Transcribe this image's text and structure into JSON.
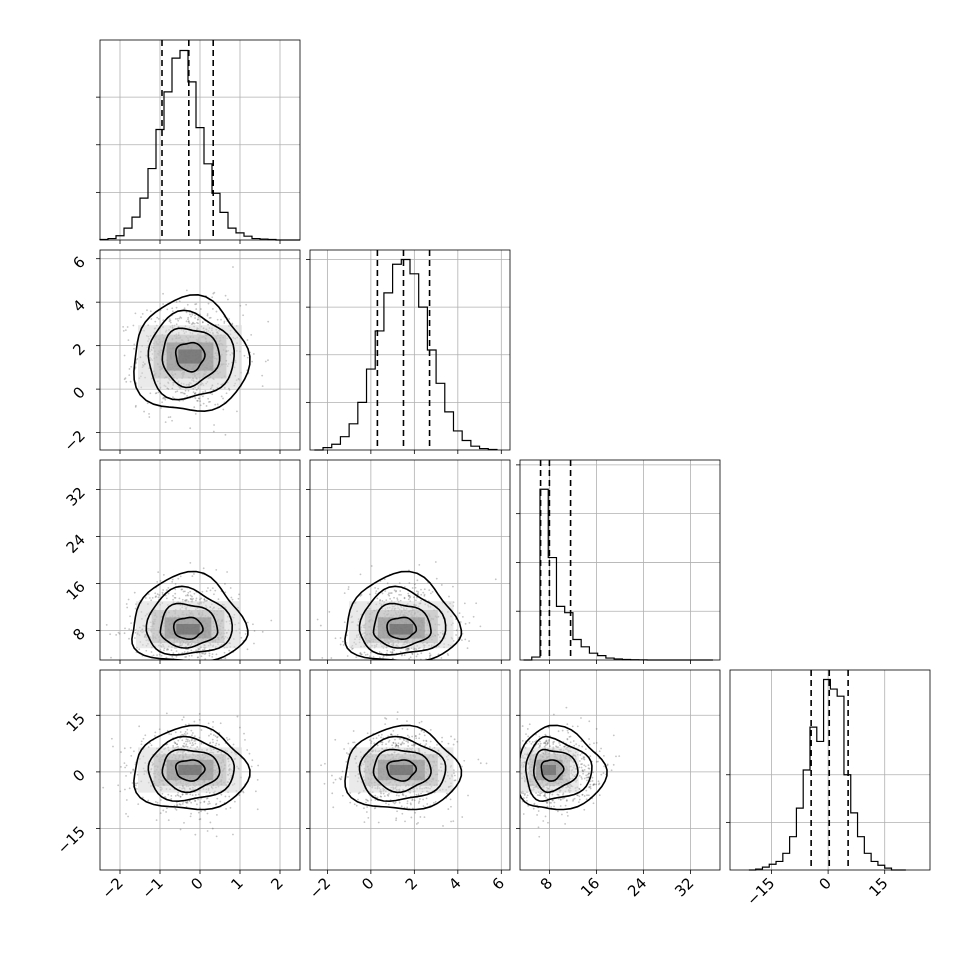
{
  "figure": {
    "type": "corner-plot",
    "n_parameters": 4
  },
  "chart_data": {
    "type": "corner",
    "title": "",
    "parameters": [
      {
        "index": 0,
        "label": "",
        "range": [
          -2.5,
          2.5
        ],
        "ticks": [
          -2,
          -1,
          0,
          1,
          2
        ],
        "tick_labels": [
          "−2",
          "−1",
          "0",
          "1",
          "2"
        ],
        "quantiles": [
          -0.95,
          -0.28,
          0.33
        ],
        "median": -0.28,
        "histogram": {
          "bin_edges": [
            -2.5,
            -2.3,
            -2.1,
            -1.9,
            -1.7,
            -1.5,
            -1.3,
            -1.1,
            -0.9,
            -0.7,
            -0.5,
            -0.3,
            -0.1,
            0.1,
            0.3,
            0.5,
            0.7,
            0.9,
            1.1,
            1.3,
            1.5,
            1.7,
            1.9,
            2.1,
            2.3,
            2.5
          ],
          "counts": [
            1,
            3,
            9,
            25,
            48,
            88,
            150,
            232,
            311,
            382,
            398,
            332,
            236,
            160,
            98,
            58,
            25,
            15,
            8,
            3,
            2,
            1,
            0,
            0,
            0
          ],
          "ylim": [
            0,
            420
          ],
          "yticks": [
            100,
            200,
            300
          ]
        }
      },
      {
        "index": 1,
        "label": "",
        "range": [
          -2.8,
          6.4
        ],
        "ticks": [
          -2,
          0,
          2,
          4,
          6
        ],
        "tick_labels": [
          "−2",
          "0",
          "2",
          "4",
          "6"
        ],
        "quantiles": [
          0.3,
          1.5,
          2.7
        ],
        "median": 1.5,
        "histogram": {
          "bin_edges": [
            -2.6,
            -2.2,
            -1.8,
            -1.4,
            -1.0,
            -0.6,
            -0.2,
            0.2,
            0.6,
            1.0,
            1.4,
            1.8,
            2.2,
            2.6,
            3.0,
            3.4,
            3.8,
            4.2,
            4.6,
            5.0,
            5.4,
            5.8
          ],
          "counts": [
            0,
            5,
            12,
            28,
            55,
            100,
            170,
            250,
            330,
            390,
            400,
            370,
            300,
            210,
            140,
            80,
            40,
            20,
            8,
            3,
            1
          ],
          "ylim": [
            0,
            420
          ],
          "yticks": [
            100,
            200,
            300,
            400
          ]
        }
      },
      {
        "index": 2,
        "label": "",
        "range": [
          3.0,
          37.0
        ],
        "ticks": [
          8,
          16,
          24,
          32
        ],
        "tick_labels": [
          "8",
          "16",
          "24",
          "32"
        ],
        "quantiles": [
          6.5,
          8.0,
          11.6
        ],
        "median": 8.0,
        "histogram": {
          "bin_edges": [
            3.6,
            5.0,
            6.4,
            7.8,
            9.2,
            10.6,
            12.0,
            13.4,
            14.8,
            16.2,
            17.6,
            19.0,
            20.4,
            21.8,
            23.2,
            24.6,
            26.0,
            27.4,
            28.8,
            30.2,
            31.6,
            33.0,
            34.4,
            35.8
          ],
          "counts": [
            0,
            60,
            3500,
            2100,
            1100,
            970,
            420,
            270,
            140,
            90,
            40,
            20,
            10,
            5,
            2,
            0,
            0,
            0,
            0,
            0,
            0,
            0,
            0
          ],
          "ylim": [
            0,
            4100
          ],
          "yticks": [
            1000,
            2000,
            3000,
            4000
          ]
        }
      },
      {
        "index": 3,
        "label": "",
        "range": [
          -26.0,
          27.0
        ],
        "ticks": [
          -15,
          0,
          15
        ],
        "tick_labels": [
          "−15",
          "0",
          "15"
        ],
        "quantiles": [
          -4.5,
          0.3,
          5.3
        ],
        "median": 0.3,
        "histogram": {
          "bin_edges": [
            -21.0,
            -19.2,
            -17.4,
            -15.6,
            -13.8,
            -12.0,
            -10.2,
            -8.4,
            -6.6,
            -4.8,
            -3.0,
            -1.2,
            0.6,
            2.4,
            4.2,
            6.0,
            7.8,
            9.6,
            11.4,
            13.2,
            15.0,
            16.8,
            18.8,
            20.6
          ],
          "counts": [
            0,
            2,
            6,
            12,
            18,
            35,
            70,
            130,
            210,
            300,
            270,
            400,
            380,
            365,
            200,
            120,
            70,
            35,
            18,
            10,
            4,
            0,
            0
          ],
          "ylim": [
            0,
            420
          ],
          "yticks": [
            100,
            200
          ]
        }
      }
    ],
    "pairs": [
      {
        "x": 0,
        "y": 1,
        "center": [
          -0.25,
          1.5
        ],
        "sigma": [
          0.65,
          1.2
        ],
        "rho": 0.0
      },
      {
        "x": 0,
        "y": 2,
        "center": [
          -0.3,
          8.0
        ],
        "sigma": [
          0.65,
          2.5
        ],
        "rho": 0.0,
        "skew": "up"
      },
      {
        "x": 1,
        "y": 2,
        "center": [
          1.4,
          8.0
        ],
        "sigma": [
          1.2,
          2.5
        ],
        "rho": 0.05,
        "skew": "up"
      },
      {
        "x": 0,
        "y": 3,
        "center": [
          -0.25,
          0.5
        ],
        "sigma": [
          0.65,
          5.0
        ],
        "rho": 0.0
      },
      {
        "x": 1,
        "y": 3,
        "center": [
          1.4,
          0.5
        ],
        "sigma": [
          1.2,
          5.0
        ],
        "rho": 0.0
      },
      {
        "x": 2,
        "y": 3,
        "center": [
          8.0,
          0.5
        ],
        "sigma": [
          2.5,
          5.0
        ],
        "rho": 0.0,
        "skew": "right"
      }
    ],
    "grid": true,
    "scatter_color": "#555555",
    "contour_color": "#000000",
    "hist_color": "#000000",
    "quantile_line_style": "dashed"
  }
}
